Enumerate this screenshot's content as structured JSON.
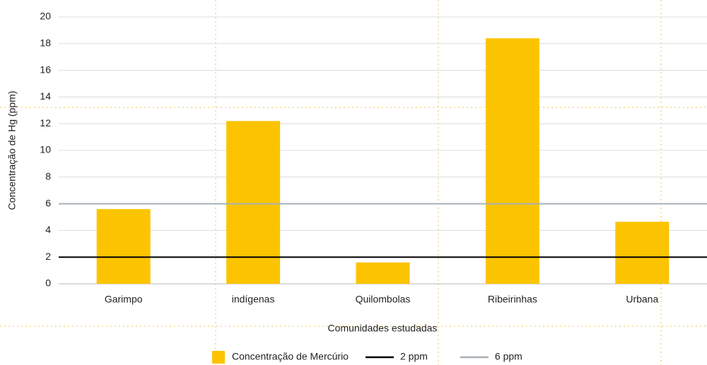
{
  "chart_data": {
    "type": "bar",
    "x_label": "Comunidades estudadas",
    "y_label": "Concentração de Hg (ppm)",
    "categories": [
      "Garimpo",
      "indígenas",
      "Quilombolas",
      "Ribeirinhas",
      "Urbana"
    ],
    "series": [
      {
        "name": "Concentração de Mercúrio",
        "color": "#fcc400",
        "values": [
          5.6,
          12.2,
          1.6,
          18.4,
          4.65
        ]
      }
    ],
    "reference_lines": [
      {
        "name": "2 ppm",
        "value": 2,
        "color": "#000000"
      },
      {
        "name": "6 ppm",
        "value": 6,
        "color": "#a9b0b8"
      }
    ],
    "ylim": [
      0,
      20
    ],
    "yticks": [
      0,
      2,
      4,
      6,
      8,
      10,
      12,
      14,
      16,
      18,
      20
    ],
    "grid": true
  }
}
